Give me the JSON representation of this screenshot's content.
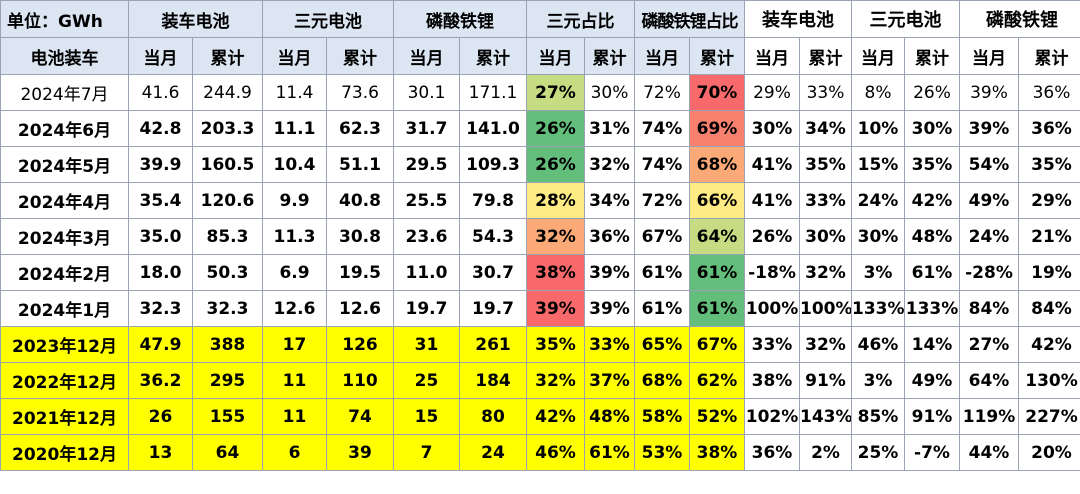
{
  "header": {
    "unit": "单位：GWh",
    "groups": [
      "装车电池",
      "三元电池",
      "磷酸铁锂",
      "三元占比",
      "磷酸铁锂占比",
      "装车电池",
      "三元电池",
      "磷酸铁锂"
    ],
    "row_label": "电池装车",
    "sub": [
      "当月",
      "累计",
      "当月",
      "累计",
      "当月",
      "累计",
      "当月",
      "累计",
      "当月",
      "累计",
      "当月",
      "累计",
      "当月",
      "累计",
      "当月",
      "累计"
    ]
  },
  "colors": {
    "header_bg": "#dce6f2",
    "yellow": "#ffff00",
    "red_text": "#e8211b",
    "scale_red": "#f8696b",
    "scale_orange": "#fbaa77",
    "scale_yellow": "#ffeb84",
    "scale_lightgreen": "#b1d580",
    "scale_green": "#63be7b"
  },
  "rows": [
    {
      "label": "2024年7月",
      "cells": [
        "41.6",
        "244.9",
        "11.4",
        "73.6",
        "30.1",
        "171.1",
        "27%",
        "30%",
        "72%",
        "70%",
        "29%",
        "33%",
        "8%",
        "26%",
        "39%",
        "36%"
      ]
    },
    {
      "label": "2024年6月",
      "cells": [
        "42.8",
        "203.3",
        "11.1",
        "62.3",
        "31.7",
        "141.0",
        "26%",
        "31%",
        "74%",
        "69%",
        "30%",
        "34%",
        "10%",
        "30%",
        "39%",
        "36%"
      ]
    },
    {
      "label": "2024年5月",
      "cells": [
        "39.9",
        "160.5",
        "10.4",
        "51.1",
        "29.5",
        "109.3",
        "26%",
        "32%",
        "74%",
        "68%",
        "41%",
        "35%",
        "15%",
        "35%",
        "54%",
        "35%"
      ]
    },
    {
      "label": "2024年4月",
      "cells": [
        "35.4",
        "120.6",
        "9.9",
        "40.8",
        "25.5",
        "79.8",
        "28%",
        "34%",
        "72%",
        "66%",
        "41%",
        "33%",
        "24%",
        "42%",
        "49%",
        "29%"
      ]
    },
    {
      "label": "2024年3月",
      "cells": [
        "35.0",
        "85.3",
        "11.3",
        "30.8",
        "23.6",
        "54.3",
        "32%",
        "36%",
        "67%",
        "64%",
        "26%",
        "30%",
        "30%",
        "48%",
        "24%",
        "21%"
      ]
    },
    {
      "label": "2024年2月",
      "cells": [
        "18.0",
        "50.3",
        "6.9",
        "19.5",
        "11.0",
        "30.7",
        "38%",
        "39%",
        "61%",
        "61%",
        "-18%",
        "32%",
        "3%",
        "61%",
        "-28%",
        "19%"
      ]
    },
    {
      "label": "2024年1月",
      "cells": [
        "32.3",
        "32.3",
        "12.6",
        "12.6",
        "19.7",
        "19.7",
        "39%",
        "39%",
        "61%",
        "61%",
        "100%",
        "100%",
        "133%",
        "133%",
        "84%",
        "84%"
      ]
    },
    {
      "label": "2023年12月",
      "cells": [
        "47.9",
        "388",
        "17",
        "126",
        "31",
        "261",
        "35%",
        "33%",
        "65%",
        "67%",
        "33%",
        "32%",
        "46%",
        "14%",
        "27%",
        "42%"
      ]
    },
    {
      "label": "2022年12月",
      "cells": [
        "36.2",
        "295",
        "11",
        "110",
        "25",
        "184",
        "32%",
        "37%",
        "68%",
        "62%",
        "38%",
        "91%",
        "3%",
        "49%",
        "64%",
        "130%"
      ]
    },
    {
      "label": "2021年12月",
      "cells": [
        "26",
        "155",
        "11",
        "74",
        "15",
        "80",
        "42%",
        "48%",
        "58%",
        "52%",
        "102%",
        "143%",
        "85%",
        "91%",
        "119%",
        "227%"
      ]
    },
    {
      "label": "2020年12月",
      "cells": [
        "13",
        "64",
        "6",
        "39",
        "7",
        "24",
        "46%",
        "61%",
        "53%",
        "38%",
        "36%",
        "2%",
        "25%",
        "-7%",
        "44%",
        "20%"
      ]
    }
  ]
}
